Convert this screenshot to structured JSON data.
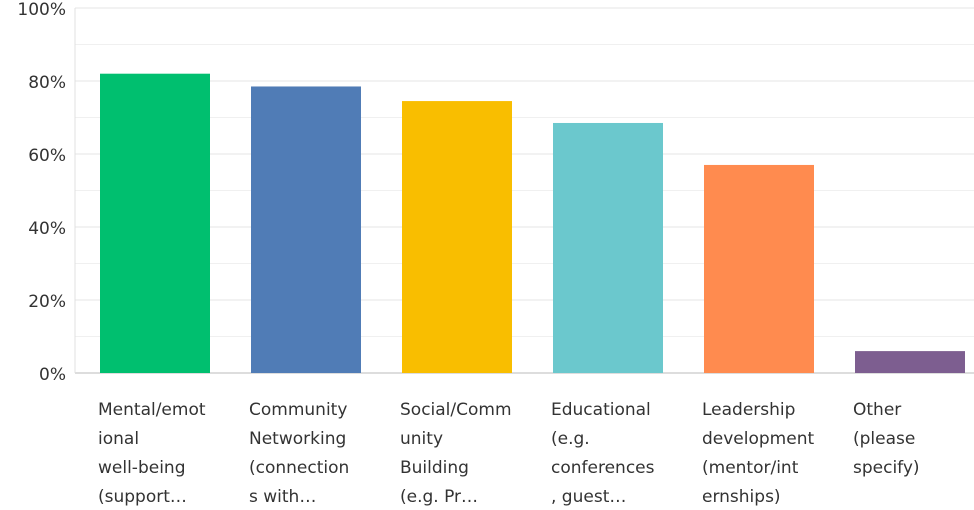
{
  "chart_data": {
    "type": "bar",
    "categories": [
      [
        "Mental/emot",
        "ional",
        "well-being",
        "(support…"
      ],
      [
        "Community",
        "Networking",
        "(connection",
        "s with…"
      ],
      [
        "Social/Comm",
        "unity",
        "Building",
        "(e.g. Pr…"
      ],
      [
        "Educational",
        "(e.g.",
        "conferences",
        ", guest…"
      ],
      [
        "Leadership",
        "development",
        "(mentor/int",
        "ernships)"
      ],
      [
        "Other",
        "(please",
        "specify)"
      ]
    ],
    "values": [
      82,
      78.5,
      74.5,
      68.5,
      57,
      6
    ],
    "colors": [
      "#00bf6f",
      "#507cb6",
      "#f9be00",
      "#6bc8cd",
      "#ff8b4f",
      "#7d5e90"
    ],
    "ylim": [
      0,
      100
    ],
    "yticks": [
      {
        "value": 0,
        "label": "0%"
      },
      {
        "value": 20,
        "label": "20%"
      },
      {
        "value": 40,
        "label": "40%"
      },
      {
        "value": 60,
        "label": "60%"
      },
      {
        "value": 80,
        "label": "80%"
      },
      {
        "value": 100,
        "label": "100%"
      }
    ],
    "minor_yticks": [
      10,
      30,
      50,
      70,
      90
    ],
    "grid": true
  }
}
